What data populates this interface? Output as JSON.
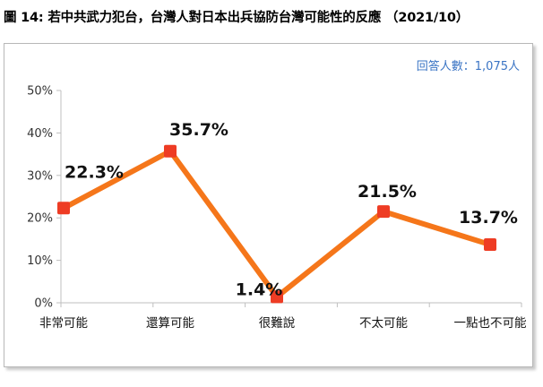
{
  "figure_title": "圖 14:  若中共武力犯台，台灣人對日本出兵協防台灣可能性的反應 （2021/10）",
  "respondents_label": "回答人數：1,075人",
  "colors": {
    "line": "#f5761a",
    "marker": "#ee3c24",
    "axis": "#bfbfbf",
    "note": "#3a74c4"
  },
  "chart_data": {
    "type": "line",
    "title": "",
    "xlabel": "",
    "ylabel": "",
    "categories": [
      "非常可能",
      "還算可能",
      "很難說",
      "不太可能",
      "一點也不可能"
    ],
    "series": [
      {
        "values": [
          22.3,
          35.7,
          1.4,
          21.5,
          13.7
        ],
        "data_labels": [
          "22.3%",
          "35.7%",
          "1.4%",
          "21.5%",
          "13.7%"
        ]
      }
    ],
    "ylim": [
      0,
      50
    ],
    "yticks": [
      "0%",
      "10%",
      "20%",
      "30%",
      "40%",
      "50%"
    ],
    "grid": false,
    "legend": "none"
  }
}
